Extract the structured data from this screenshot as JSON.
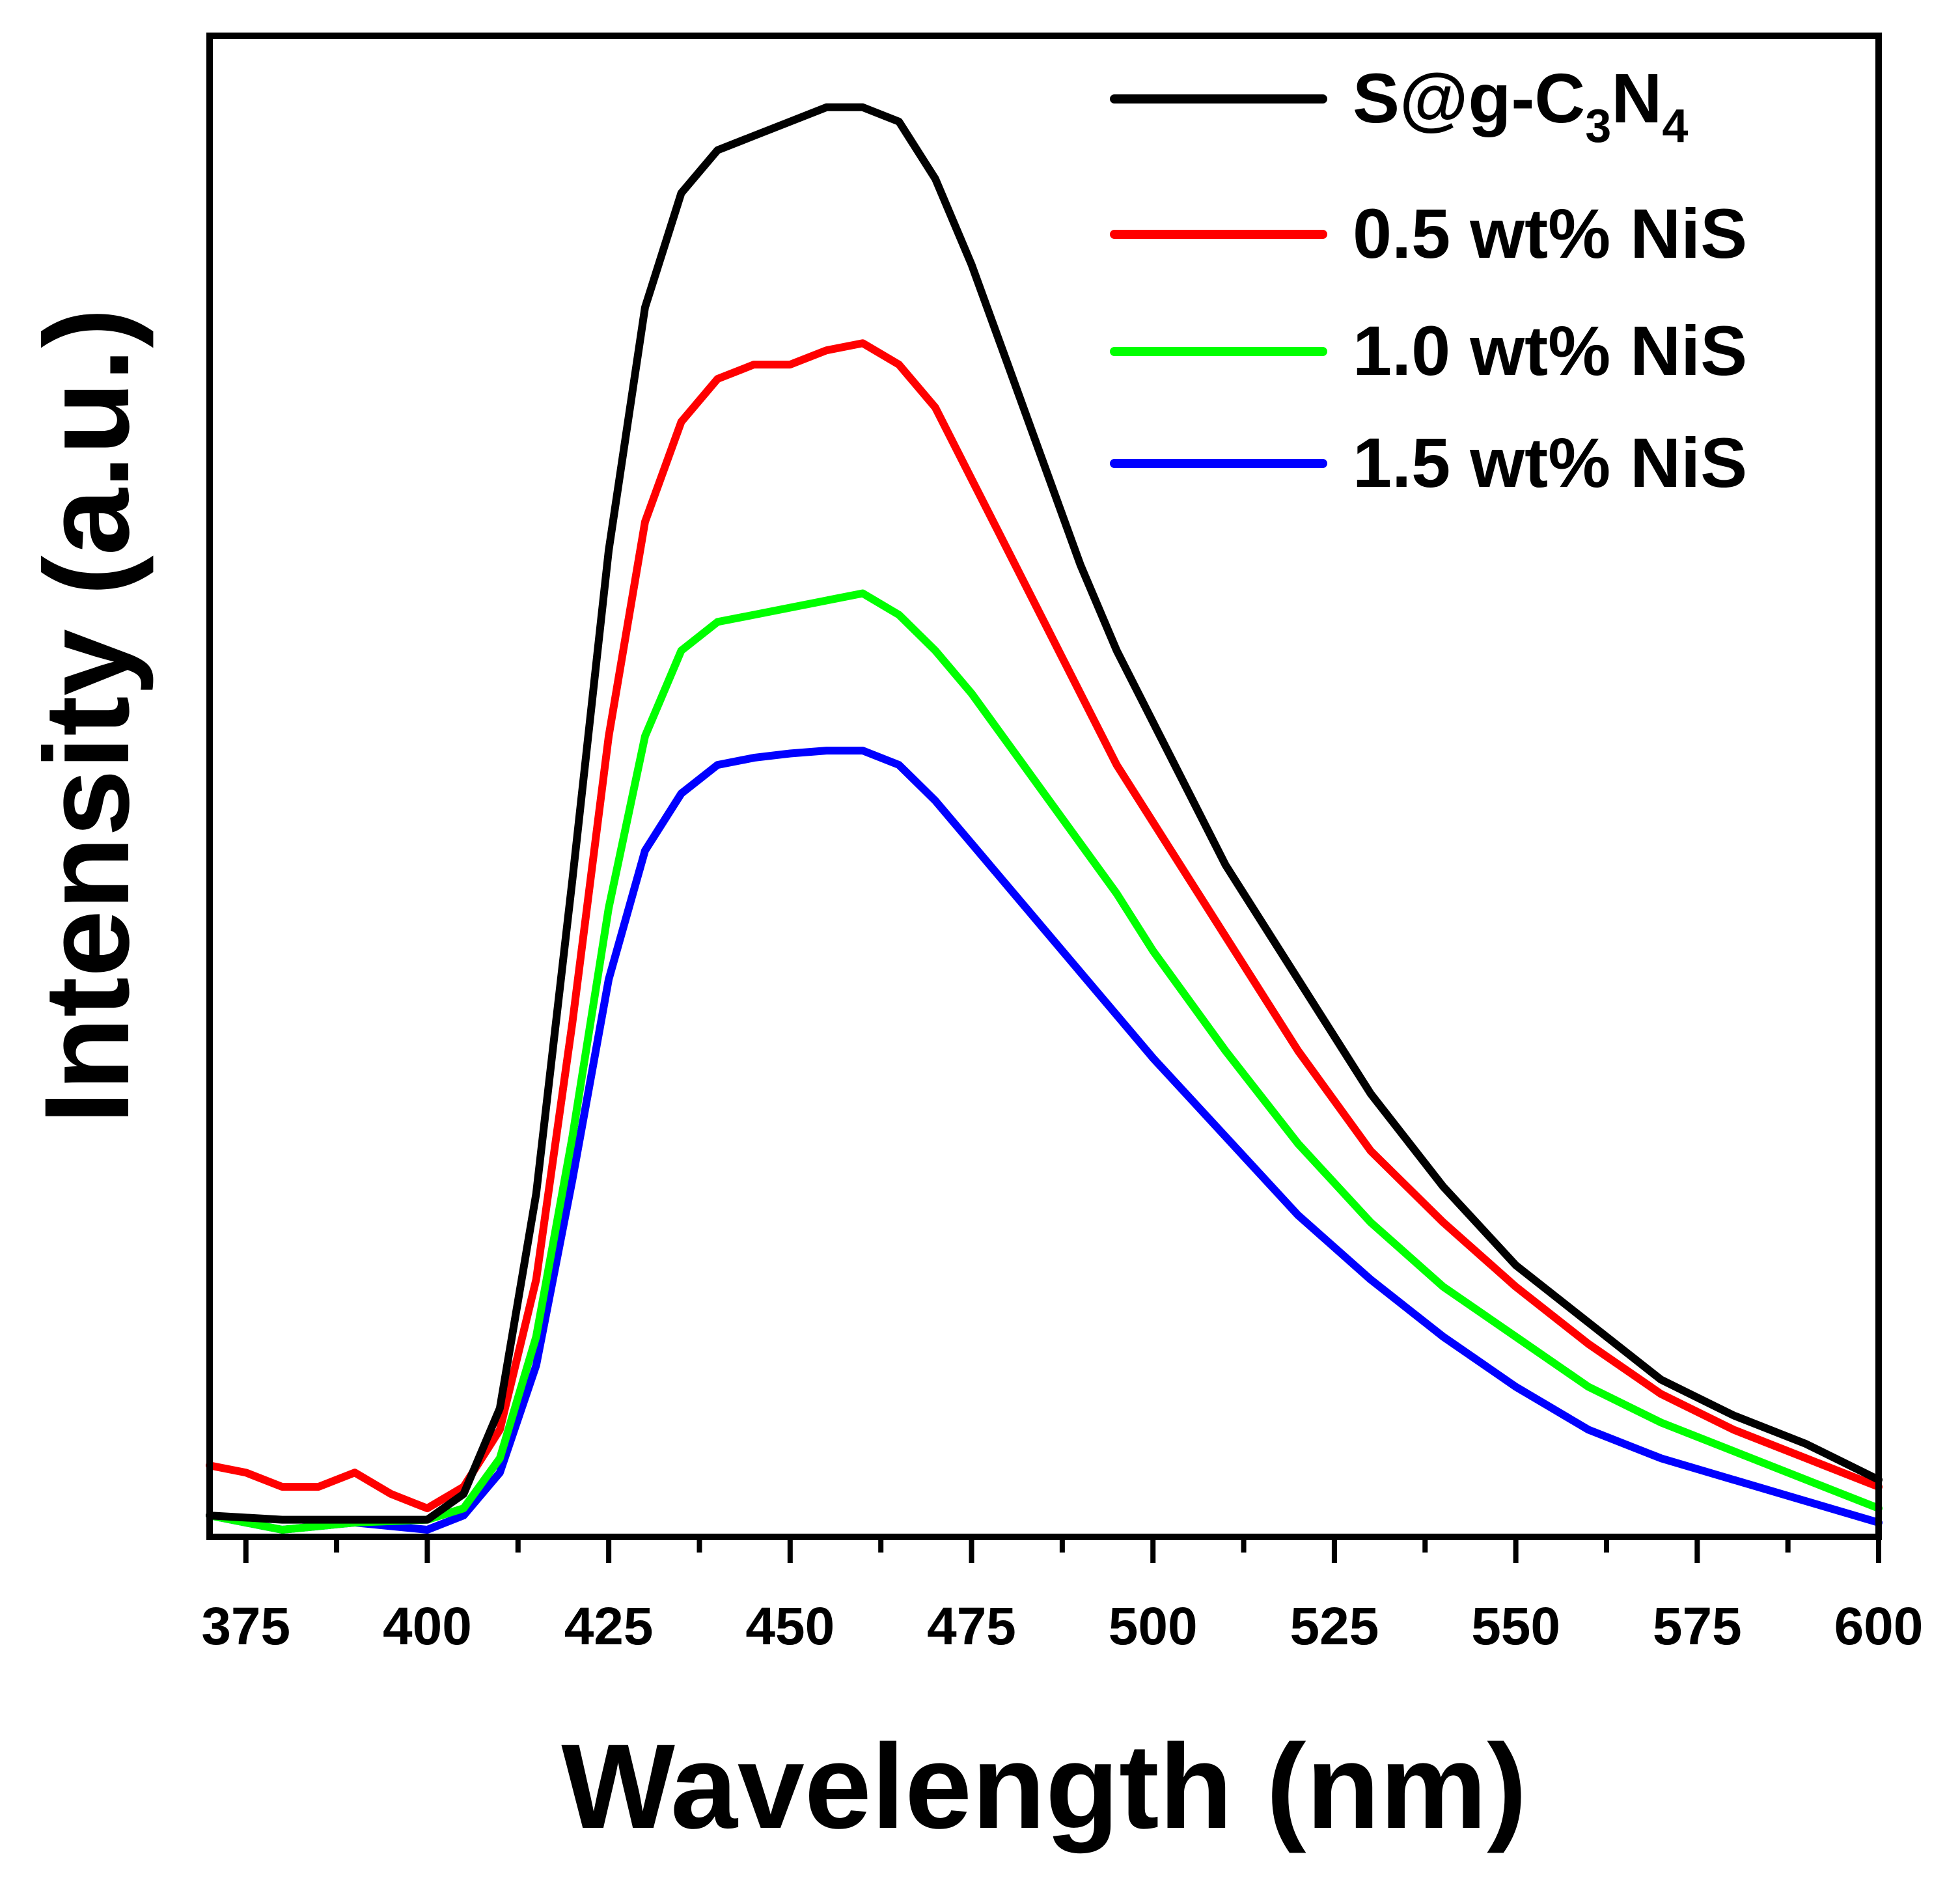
{
  "chart_data": {
    "type": "line",
    "xlabel": "Wavelength (nm)",
    "ylabel": "Intensity (a.u.)",
    "xlim": [
      370,
      600
    ],
    "ylim": [
      0,
      1.05
    ],
    "xticks": [
      375,
      400,
      425,
      450,
      475,
      500,
      525,
      550,
      575,
      600
    ],
    "xtick_labels": [
      "375",
      "400",
      "425",
      "450",
      "475",
      "500",
      "525",
      "550",
      "575",
      "600"
    ],
    "y_ticks_shown": false,
    "legend_position": "top-right",
    "series": [
      {
        "name": "S@g-C3N4",
        "legend_parts": [
          "S@g-C",
          "3",
          "N",
          "4"
        ],
        "color": "#000000",
        "x": [
          370,
          380,
          390,
          400,
          405,
          410,
          415,
          420,
          425,
          430,
          435,
          440,
          445,
          450,
          455,
          460,
          465,
          470,
          475,
          480,
          485,
          490,
          495,
          500,
          510,
          520,
          530,
          540,
          550,
          560,
          570,
          580,
          590,
          600
        ],
        "values": [
          0.015,
          0.012,
          0.012,
          0.012,
          0.03,
          0.09,
          0.24,
          0.46,
          0.69,
          0.86,
          0.94,
          0.97,
          0.98,
          0.99,
          1.0,
          1.0,
          0.99,
          0.95,
          0.89,
          0.82,
          0.75,
          0.68,
          0.62,
          0.57,
          0.47,
          0.39,
          0.31,
          0.245,
          0.19,
          0.15,
          0.11,
          0.085,
          0.065,
          0.04
        ]
      },
      {
        "name": "0.5 wt% NiS",
        "legend_parts": [
          "0.5 wt% NiS"
        ],
        "color": "#ff0000",
        "x": [
          370,
          375,
          380,
          385,
          390,
          395,
          400,
          405,
          410,
          415,
          420,
          425,
          430,
          435,
          440,
          445,
          450,
          455,
          460,
          465,
          470,
          475,
          480,
          485,
          490,
          495,
          500,
          510,
          520,
          530,
          540,
          550,
          560,
          570,
          580,
          590,
          600
        ],
        "values": [
          0.05,
          0.045,
          0.035,
          0.035,
          0.045,
          0.03,
          0.02,
          0.035,
          0.075,
          0.18,
          0.36,
          0.56,
          0.71,
          0.78,
          0.81,
          0.82,
          0.82,
          0.83,
          0.835,
          0.82,
          0.79,
          0.74,
          0.69,
          0.64,
          0.59,
          0.54,
          0.5,
          0.42,
          0.34,
          0.27,
          0.22,
          0.175,
          0.135,
          0.1,
          0.075,
          0.055,
          0.035
        ]
      },
      {
        "name": "1.0 wt% NiS",
        "legend_parts": [
          "1.0 wt% NiS"
        ],
        "color": "#00ff00",
        "x": [
          370,
          380,
          390,
          400,
          405,
          410,
          415,
          420,
          425,
          430,
          435,
          440,
          445,
          450,
          455,
          460,
          465,
          470,
          475,
          480,
          485,
          490,
          495,
          500,
          510,
          520,
          530,
          540,
          550,
          560,
          570,
          580,
          590,
          600
        ],
        "values": [
          0.015,
          0.005,
          0.01,
          0.012,
          0.02,
          0.055,
          0.14,
          0.28,
          0.44,
          0.56,
          0.62,
          0.64,
          0.645,
          0.65,
          0.655,
          0.66,
          0.645,
          0.62,
          0.59,
          0.555,
          0.52,
          0.485,
          0.45,
          0.41,
          0.34,
          0.275,
          0.22,
          0.175,
          0.14,
          0.105,
          0.08,
          0.06,
          0.04,
          0.02
        ]
      },
      {
        "name": "1.5 wt% NiS",
        "legend_parts": [
          "1.5 wt% NiS"
        ],
        "color": "#0000ff",
        "x": [
          370,
          380,
          390,
          400,
          405,
          410,
          415,
          420,
          425,
          430,
          435,
          440,
          445,
          450,
          455,
          460,
          465,
          470,
          475,
          480,
          485,
          490,
          495,
          500,
          510,
          520,
          530,
          540,
          550,
          560,
          570,
          580,
          590,
          600
        ],
        "values": [
          0.015,
          0.005,
          0.01,
          0.005,
          0.015,
          0.045,
          0.12,
          0.25,
          0.39,
          0.48,
          0.52,
          0.54,
          0.545,
          0.548,
          0.55,
          0.55,
          0.54,
          0.515,
          0.485,
          0.455,
          0.425,
          0.395,
          0.365,
          0.335,
          0.28,
          0.225,
          0.18,
          0.14,
          0.105,
          0.075,
          0.055,
          0.04,
          0.025,
          0.01
        ]
      }
    ]
  }
}
